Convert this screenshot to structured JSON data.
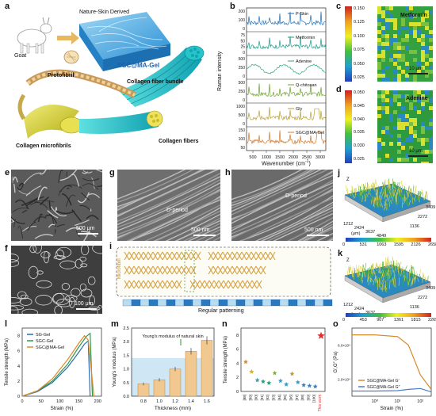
{
  "panels": {
    "a": {
      "label": "a",
      "goat": "Goat",
      "source": "Nature-Skin Derived",
      "material": "SGC@MA-Gel",
      "protofibril": "Protofibril",
      "bundle": "Collagen fiber bundle",
      "microfibrils": "Collagen microfibrils",
      "fibers": "Collagen fibers"
    },
    "b": {
      "label": "b",
      "ylabel": "Raman intensity",
      "xlabel": "Wavenumber (cm",
      "xlabel_sup": "-1",
      "xlabel_end": ")",
      "xticks": [
        "500",
        "1000",
        "1500",
        "2000",
        "2500",
        "3000"
      ],
      "traces": [
        {
          "name": "P-Skin",
          "color": "#1f6fb5",
          "yticks": [
            "0",
            "100",
            "200"
          ]
        },
        {
          "name": "Metformin",
          "color": "#1a9a8a",
          "yticks": [
            "0",
            "25",
            "50",
            "75"
          ]
        },
        {
          "name": "Adenine",
          "color": "#2aa87a",
          "yticks": [
            "0",
            "250",
            "500"
          ]
        },
        {
          "name": "Q-chitosan",
          "color": "#6aa02a",
          "yticks": [
            "0",
            "250",
            "500"
          ]
        },
        {
          "name": "Gly",
          "color": "#b8a030",
          "yticks": [
            "0",
            "500",
            "1000"
          ]
        },
        {
          "name": "SGC@MA-Gel",
          "color": "#d2782a",
          "yticks": [
            "50",
            "100",
            "150"
          ]
        }
      ]
    },
    "c": {
      "label": "c",
      "title": "Metformin",
      "scale": "10 μm",
      "yticks": [
        "0.150",
        "0.125",
        "0.100",
        "0.075",
        "0.050",
        "0.025"
      ]
    },
    "d": {
      "label": "d",
      "title": "Adenine",
      "scale": "10 μm",
      "yticks": [
        "0.050",
        "0.045",
        "0.040",
        "0.035",
        "0.030",
        "0.025"
      ]
    },
    "e": {
      "label": "e",
      "scale": "500 μm"
    },
    "f": {
      "label": "f",
      "scale": "100 μm"
    },
    "g": {
      "label": "g",
      "scale": "500 nm",
      "annotation": "D-period"
    },
    "h": {
      "label": "h",
      "scale": "500 nm",
      "annotation": "D-period"
    },
    "i": {
      "label": "i",
      "side": "Microfibril",
      "bottom": "Regular patterning"
    },
    "j": {
      "label": "j",
      "axis_z": "Z",
      "axis_x": [
        "1212",
        "2424",
        "3637",
        "4849"
      ],
      "axis_y": [
        "1136",
        "2272",
        "3409"
      ],
      "unit": "(μm)",
      "colorbar": [
        "0",
        "531",
        "1063",
        "1595",
        "2126",
        "2658"
      ]
    },
    "k": {
      "label": "k",
      "axis_z": "Z",
      "axis_x": [
        "1212",
        "2424",
        "3637",
        "4849"
      ],
      "axis_y": [
        "1136",
        "2272",
        "3409"
      ],
      "unit": "(μm)",
      "colorbar": [
        "0",
        "453",
        "907",
        "1361",
        "1815",
        "2269"
      ]
    },
    "l": {
      "label": "l",
      "xlabel": "Strain (%)",
      "ylabel": "Tensile strength (MPa)",
      "legend": [
        "SG-Gel",
        "SGC-Gel",
        "SGC@MA-Gel"
      ],
      "xticks": [
        "0",
        "50",
        "100",
        "150",
        "200"
      ],
      "yticks": [
        "0",
        "2",
        "4",
        "6",
        "8"
      ]
    },
    "m": {
      "label": "m",
      "xlabel": "Thickness (mm)",
      "ylabel": "Young's modulus (MPa)",
      "annotation": "Young's modulus of natural skin",
      "xticks": [
        "0.8",
        "1.0",
        "1.2",
        "1.4",
        "1.6"
      ],
      "yticks": [
        "0.0",
        "0.5",
        "1.0",
        "1.5",
        "2.0",
        "2.5"
      ]
    },
    "n": {
      "label": "n",
      "ylabel": "Tensile strength (MPa)",
      "this_work": "This work",
      "refs": [
        "[88]",
        "[89]",
        "[90]",
        "[91]",
        "[92]",
        "[93]",
        "[94]",
        "[95]",
        "[96]",
        "[97]",
        "[98]",
        "[99]",
        "[100]"
      ],
      "yticks": [
        "0",
        "2",
        "4",
        "6",
        "8"
      ]
    },
    "o": {
      "label": "o",
      "xlabel": "Strain (%)",
      "ylabel": "G′,G″ (Pa)",
      "legend": [
        "SGC@MA-Gel G′",
        "SGC@MA-Gel G″"
      ],
      "yticks": [
        "2.0×10⁴",
        "6.0×10⁴"
      ],
      "xticks": [
        "10⁰",
        "10¹",
        "10²"
      ]
    }
  },
  "chart_data": [
    {
      "type": "line",
      "title": "",
      "xlabel": "Strain (%)",
      "ylabel": "Tensile strength (MPa)",
      "xlim": [
        0,
        210
      ],
      "ylim": [
        0,
        9
      ],
      "series": [
        {
          "name": "SG-Gel",
          "color": "#2b6cb0",
          "x": [
            0,
            40,
            80,
            120,
            150,
            165,
            175,
            180
          ],
          "y": [
            0,
            0.6,
            1.8,
            3.8,
            5.8,
            6.9,
            7.3,
            0
          ]
        },
        {
          "name": "SGC-Gel",
          "color": "#2c9a4a",
          "x": [
            0,
            40,
            80,
            120,
            150,
            170,
            180,
            186
          ],
          "y": [
            0,
            0.7,
            2.0,
            4.2,
            6.5,
            7.9,
            8.3,
            0
          ]
        },
        {
          "name": "SGC@MA-Gel",
          "color": "#e08a2a",
          "x": [
            0,
            40,
            80,
            120,
            150,
            165,
            175,
            190
          ],
          "y": [
            0,
            0.7,
            2.3,
            4.8,
            7.0,
            8.0,
            7.4,
            0
          ]
        }
      ]
    },
    {
      "type": "bar",
      "title": "",
      "xlabel": "Thickness (mm)",
      "ylabel": "Young's modulus (MPa)",
      "categories": [
        "0.8",
        "1.0",
        "1.2",
        "1.4",
        "1.6"
      ],
      "values": [
        0.45,
        0.6,
        1.0,
        1.65,
        2.05
      ],
      "errors": [
        0.05,
        0.06,
        0.08,
        0.12,
        0.15
      ],
      "ylim": [
        0,
        2.5
      ],
      "band": [
        0,
        1.4
      ]
    },
    {
      "type": "scatter",
      "title": "",
      "ylabel": "Tensile strength (MPa)",
      "categories": [
        "[88]",
        "[89]",
        "[90]",
        "[91]",
        "[92]",
        "[93]",
        "[94]",
        "[95]",
        "[96]",
        "[97]",
        "[98]",
        "[99]",
        "[100]",
        "This work"
      ],
      "values": [
        4.2,
        2.8,
        1.6,
        1.4,
        1.2,
        2.6,
        1.5,
        1.0,
        2.5,
        1.3,
        0.9,
        0.8,
        0.7,
        7.9
      ],
      "ylim": [
        0,
        9
      ]
    },
    {
      "type": "line",
      "title": "",
      "xlabel": "Strain (%)",
      "ylabel": "G′,G″ (Pa)",
      "xscale": "log",
      "xlim": [
        0.1,
        300
      ],
      "ylim": [
        0,
        80000
      ],
      "series": [
        {
          "name": "SGC@MA-Gel G′",
          "color": "#d58a2a",
          "x": [
            0.1,
            1,
            10,
            30,
            100,
            300
          ],
          "y": [
            72000,
            72000,
            70000,
            60000,
            25000,
            8000
          ]
        },
        {
          "name": "SGC@MA-Gel G″",
          "color": "#4a7fc0",
          "x": [
            0.1,
            1,
            10,
            30,
            100,
            300
          ],
          "y": [
            6000,
            6000,
            6500,
            8000,
            9000,
            5000
          ]
        }
      ]
    }
  ]
}
